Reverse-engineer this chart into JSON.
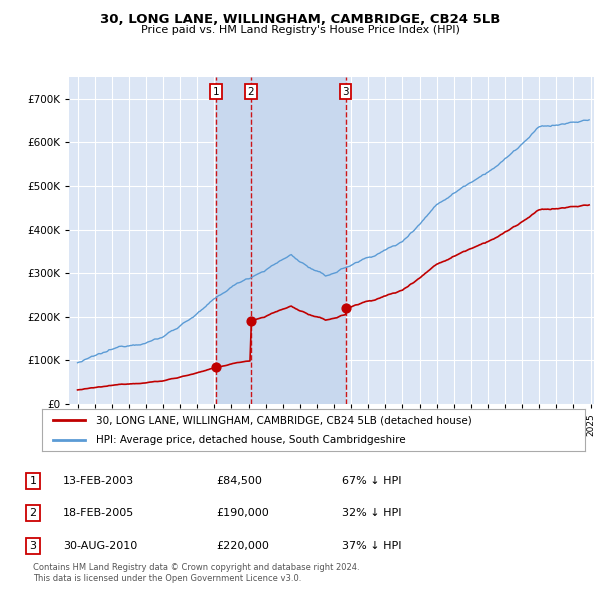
{
  "title": "30, LONG LANE, WILLINGHAM, CAMBRIDGE, CB24 5LB",
  "subtitle": "Price paid vs. HM Land Registry's House Price Index (HPI)",
  "legend_line1": "30, LONG LANE, WILLINGHAM, CAMBRIDGE, CB24 5LB (detached house)",
  "legend_line2": "HPI: Average price, detached house, South Cambridgeshire",
  "footer1": "Contains HM Land Registry data © Crown copyright and database right 2024.",
  "footer2": "This data is licensed under the Open Government Licence v3.0.",
  "transactions": [
    {
      "num": 1,
      "date": "13-FEB-2003",
      "price": "£84,500",
      "hpi": "67% ↓ HPI",
      "year": 2003.12
    },
    {
      "num": 2,
      "date": "18-FEB-2005",
      "price": "£190,000",
      "hpi": "32% ↓ HPI",
      "year": 2005.12
    },
    {
      "num": 3,
      "date": "30-AUG-2010",
      "price": "£220,000",
      "hpi": "37% ↓ HPI",
      "year": 2010.67
    }
  ],
  "transaction_prices": [
    84500,
    190000,
    220000
  ],
  "yticks": [
    0,
    100000,
    200000,
    300000,
    400000,
    500000,
    600000,
    700000
  ],
  "ylim": [
    0,
    750000
  ],
  "xlim_start": 1994.5,
  "xlim_end": 2025.2,
  "background_color": "#ffffff",
  "plot_bg_color": "#dce6f5",
  "highlight_color": "#c8d8ee",
  "grid_color": "#ffffff",
  "hpi_line_color": "#5b9bd5",
  "price_line_color": "#c00000",
  "vline_color": "#cc0000",
  "transaction_box_color": "#cc0000"
}
